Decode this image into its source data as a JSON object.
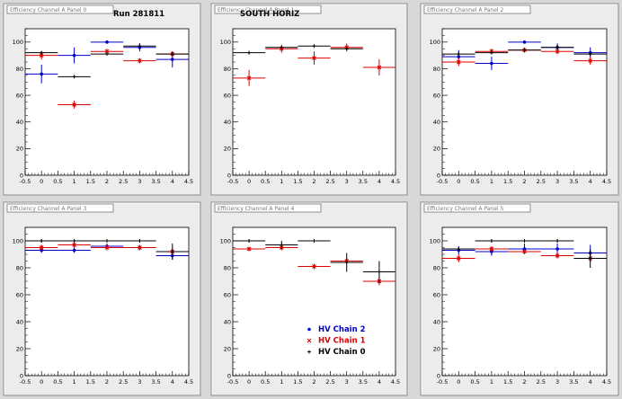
{
  "chart_data": [
    {
      "type": "scatter",
      "title": "",
      "header_tab": "Efficiency Channel A Panel 0",
      "label": "Run 281811",
      "xlim": [
        -0.5,
        4.5
      ],
      "ylim": [
        0,
        110
      ],
      "xticks": [
        "-0.5",
        "0",
        "0.5",
        "1",
        "1.5",
        "2",
        "2.5",
        "3",
        "3.5",
        "4",
        "4.5"
      ],
      "yticks": [
        "0",
        "20",
        "40",
        "60",
        "80",
        "100"
      ],
      "series": [
        {
          "color": "#0000cc",
          "marker": "dot",
          "x": [
            0,
            1,
            2,
            3,
            4
          ],
          "y": [
            76,
            90,
            100,
            96,
            87
          ],
          "yerr": [
            7,
            6,
            1,
            3,
            6
          ]
        },
        {
          "color": "#dd0000",
          "marker": "star",
          "x": [
            0,
            1,
            2,
            3,
            4
          ],
          "y": [
            90,
            53,
            93,
            86,
            91
          ],
          "yerr": [
            3,
            3,
            2,
            2,
            2
          ]
        },
        {
          "color": "#000000",
          "marker": "plus",
          "x": [
            0,
            1,
            2,
            3,
            4
          ],
          "y": [
            92,
            74,
            91,
            97,
            91
          ],
          "yerr": [
            1,
            1,
            1,
            2,
            1
          ]
        }
      ]
    },
    {
      "type": "scatter",
      "title": "",
      "header_tab": "Efficiency Channel A Panel 1",
      "label": "SOUTH HORIZ",
      "xlim": [
        -0.5,
        4.5
      ],
      "ylim": [
        0,
        110
      ],
      "xticks": [
        "-0.5",
        "0",
        "0.5",
        "1",
        "1.5",
        "2",
        "2.5",
        "3",
        "3.5",
        "4",
        "4.5"
      ],
      "yticks": [
        "0",
        "20",
        "40",
        "60",
        "80",
        "100"
      ],
      "series": [
        {
          "color": "#dd0000",
          "marker": "star",
          "x": [
            0,
            1,
            2,
            3,
            4
          ],
          "y": [
            73,
            95,
            88,
            96,
            81
          ],
          "yerr": [
            6,
            3,
            5,
            3,
            6
          ]
        },
        {
          "color": "#000000",
          "marker": "plus",
          "x": [
            0,
            1,
            2,
            3,
            4
          ],
          "y": [
            92,
            96,
            97,
            95,
            null
          ],
          "yerr": [
            1,
            1,
            1,
            1,
            0
          ]
        }
      ]
    },
    {
      "type": "scatter",
      "title": "",
      "header_tab": "Efficiency Channel A Panel 2",
      "label": "",
      "xlim": [
        -0.5,
        4.5
      ],
      "ylim": [
        0,
        110
      ],
      "xticks": [
        "-0.5",
        "0",
        "0.5",
        "1",
        "1.5",
        "2",
        "2.5",
        "3",
        "3.5",
        "4",
        "4.5"
      ],
      "yticks": [
        "0",
        "20",
        "40",
        "60",
        "80",
        "100"
      ],
      "series": [
        {
          "color": "#0000cc",
          "marker": "dot",
          "x": [
            0,
            1,
            2,
            3,
            4
          ],
          "y": [
            89,
            84,
            100,
            96,
            92
          ],
          "yerr": [
            5,
            5,
            1,
            3,
            4
          ]
        },
        {
          "color": "#dd0000",
          "marker": "star",
          "x": [
            0,
            1,
            2,
            3,
            4
          ],
          "y": [
            85,
            93,
            94,
            93,
            86
          ],
          "yerr": [
            3,
            2,
            2,
            2,
            3
          ]
        },
        {
          "color": "#000000",
          "marker": "plus",
          "x": [
            0,
            1,
            2,
            3,
            4
          ],
          "y": [
            91,
            92,
            94,
            96,
            91
          ],
          "yerr": [
            1,
            1,
            1,
            2,
            1
          ]
        }
      ]
    },
    {
      "type": "scatter",
      "title": "",
      "header_tab": "Efficiency Channel A Panel 3",
      "label": "",
      "xlim": [
        -0.5,
        4.5
      ],
      "ylim": [
        0,
        110
      ],
      "xticks": [
        "-0.5",
        "0",
        "0.5",
        "1",
        "1.5",
        "2",
        "2.5",
        "3",
        "3.5",
        "4",
        "4.5"
      ],
      "yticks": [
        "0",
        "20",
        "40",
        "60",
        "80",
        "100"
      ],
      "series": [
        {
          "color": "#0000cc",
          "marker": "dot",
          "x": [
            0,
            1,
            2,
            3,
            4
          ],
          "y": [
            93,
            93,
            96,
            95,
            89
          ],
          "yerr": [
            2,
            2,
            2,
            2,
            3
          ]
        },
        {
          "color": "#dd0000",
          "marker": "star",
          "x": [
            0,
            1,
            2,
            3,
            4
          ],
          "y": [
            95,
            97,
            95,
            95,
            92
          ],
          "yerr": [
            2,
            2,
            2,
            2,
            3
          ]
        },
        {
          "color": "#000000",
          "marker": "plus",
          "x": [
            0,
            1,
            2,
            3,
            4
          ],
          "y": [
            100,
            100,
            100,
            100,
            92
          ],
          "yerr": [
            1,
            1,
            1,
            1,
            6
          ]
        }
      ]
    },
    {
      "type": "scatter",
      "title": "",
      "header_tab": "Efficiency Channel A Panel 4",
      "label": "",
      "xlim": [
        -0.5,
        4.5
      ],
      "ylim": [
        0,
        110
      ],
      "xticks": [
        "-0.5",
        "0",
        "0.5",
        "1",
        "1.5",
        "2",
        "2.5",
        "3",
        "3.5",
        "4",
        "4.5"
      ],
      "yticks": [
        "0",
        "20",
        "40",
        "60",
        "80",
        "100"
      ],
      "series": [
        {
          "color": "#dd0000",
          "marker": "star",
          "x": [
            0,
            1,
            2,
            3,
            4
          ],
          "y": [
            94,
            95,
            81,
            85,
            70
          ],
          "yerr": [
            1,
            2,
            2,
            2,
            3
          ]
        },
        {
          "color": "#000000",
          "marker": "plus",
          "x": [
            0,
            1,
            2,
            3,
            4
          ],
          "y": [
            100,
            97,
            100,
            84,
            77
          ],
          "yerr": [
            1,
            3,
            1,
            7,
            8
          ]
        }
      ],
      "legend": {
        "placement": "bottom-right",
        "entries": [
          {
            "name": "HV Chain 2",
            "color": "#0000cc",
            "marker": "dot"
          },
          {
            "name": "HV Chain 1",
            "color": "#dd0000",
            "marker": "star"
          },
          {
            "name": "HV Chain 0",
            "color": "#000000",
            "marker": "plus"
          }
        ]
      }
    },
    {
      "type": "scatter",
      "title": "",
      "header_tab": "Efficiency Channel A Panel 5",
      "label": "",
      "xlim": [
        -0.5,
        4.5
      ],
      "ylim": [
        0,
        110
      ],
      "xticks": [
        "-0.5",
        "0",
        "0.5",
        "1",
        "1.5",
        "2",
        "2.5",
        "3",
        "3.5",
        "4",
        "4.5"
      ],
      "yticks": [
        "0",
        "20",
        "40",
        "60",
        "80",
        "100"
      ],
      "series": [
        {
          "color": "#0000cc",
          "marker": "dot",
          "x": [
            0,
            1,
            2,
            3,
            4
          ],
          "y": [
            93,
            92,
            94,
            94,
            91
          ],
          "yerr": [
            3,
            3,
            4,
            4,
            6
          ]
        },
        {
          "color": "#dd0000",
          "marker": "star",
          "x": [
            0,
            1,
            2,
            3,
            4
          ],
          "y": [
            87,
            94,
            92,
            89,
            87
          ],
          "yerr": [
            3,
            2,
            2,
            2,
            3
          ]
        },
        {
          "color": "#000000",
          "marker": "plus",
          "x": [
            0,
            1,
            2,
            3,
            4
          ],
          "y": [
            94,
            100,
            100,
            100,
            87
          ],
          "yerr": [
            1,
            1,
            1,
            1,
            7
          ]
        }
      ]
    }
  ]
}
